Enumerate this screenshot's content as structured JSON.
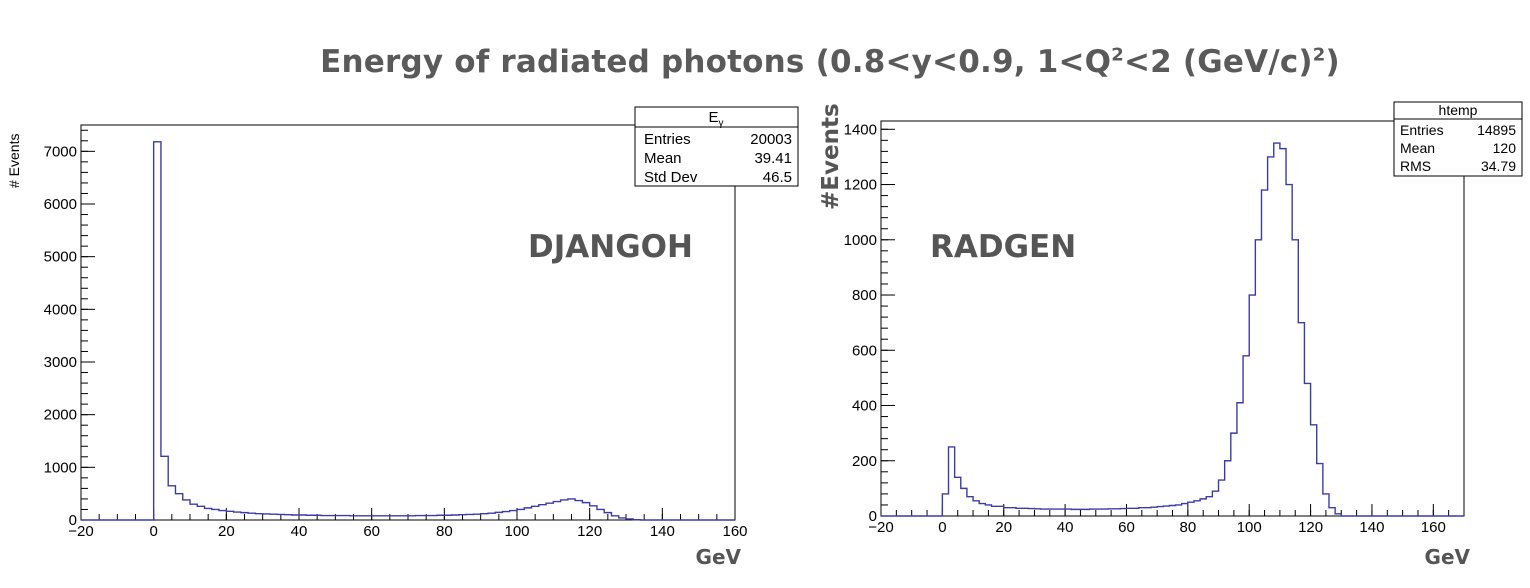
{
  "page_title": {
    "main": "Energy of radiated photons (0.8<y<0.9, 1<Q",
    "sup1": "2",
    "mid": "<2 (GeV/c)",
    "sup2": "2",
    "end": ")"
  },
  "chart_data": [
    {
      "type": "histogram",
      "label": "DJANGOH",
      "ylabel": "# Events",
      "xlabel": "GeV",
      "xlim": [
        -20,
        160
      ],
      "ylim": [
        0,
        7500
      ],
      "xticks": [
        "-20",
        "0",
        "20",
        "40",
        "60",
        "80",
        "100",
        "120",
        "140",
        "160"
      ],
      "yticks": [
        "0",
        "1000",
        "2000",
        "3000",
        "4000",
        "5000",
        "6000",
        "7000"
      ],
      "bin_width": 2,
      "bin_start": -20,
      "values": [
        0,
        0,
        0,
        0,
        0,
        0,
        0,
        0,
        0,
        0,
        7180,
        1210,
        650,
        500,
        380,
        300,
        260,
        220,
        200,
        180,
        165,
        150,
        140,
        130,
        120,
        115,
        110,
        105,
        100,
        95,
        95,
        90,
        90,
        85,
        85,
        85,
        85,
        80,
        80,
        80,
        80,
        80,
        80,
        80,
        80,
        80,
        85,
        85,
        85,
        90,
        90,
        95,
        100,
        105,
        110,
        120,
        130,
        145,
        160,
        180,
        200,
        230,
        260,
        290,
        320,
        350,
        380,
        400,
        370,
        330,
        270,
        200,
        140,
        80,
        40,
        20,
        5,
        0,
        0,
        0,
        0,
        0,
        0,
        0,
        0,
        0,
        0,
        0,
        0,
        0
      ],
      "color": "#3c3ca8",
      "stats": {
        "title": "E",
        "title_sub": "γ",
        "rows": [
          {
            "name": "Entries",
            "value": "20003"
          },
          {
            "name": "Mean",
            "value": "39.41"
          },
          {
            "name": "Std Dev",
            "value": "46.5"
          }
        ]
      }
    },
    {
      "type": "histogram",
      "label": "RADGEN",
      "ylabel": "#Events",
      "xlabel": "GeV",
      "xlim": [
        -20,
        170
      ],
      "ylim": [
        0,
        1430
      ],
      "xticks": [
        "-20",
        "0",
        "20",
        "40",
        "60",
        "80",
        "100",
        "120",
        "140",
        "160"
      ],
      "yticks": [
        "0",
        "200",
        "400",
        "600",
        "800",
        "1000",
        "1200",
        "1400"
      ],
      "bin_width": 2,
      "bin_start": -20,
      "values": [
        0,
        0,
        0,
        0,
        0,
        0,
        0,
        0,
        0,
        0,
        80,
        250,
        140,
        100,
        70,
        55,
        45,
        40,
        35,
        35,
        30,
        30,
        28,
        28,
        27,
        26,
        25,
        25,
        25,
        25,
        25,
        24,
        24,
        24,
        25,
        25,
        25,
        26,
        26,
        27,
        28,
        28,
        30,
        30,
        32,
        34,
        36,
        38,
        40,
        45,
        50,
        55,
        62,
        70,
        90,
        130,
        200,
        300,
        410,
        580,
        800,
        1000,
        1180,
        1300,
        1350,
        1330,
        1200,
        1000,
        700,
        480,
        330,
        190,
        80,
        30,
        8,
        0,
        0,
        0,
        0,
        0,
        0,
        0,
        0,
        0,
        0,
        0,
        0,
        0,
        0,
        0,
        0,
        0,
        0,
        0,
        0
      ],
      "color": "#3c3ca8",
      "stats": {
        "title": "htemp",
        "rows": [
          {
            "name": "Entries",
            "value": "14895"
          },
          {
            "name": "Mean",
            "value": "120"
          },
          {
            "name": "RMS",
            "value": "34.79"
          }
        ]
      }
    }
  ]
}
